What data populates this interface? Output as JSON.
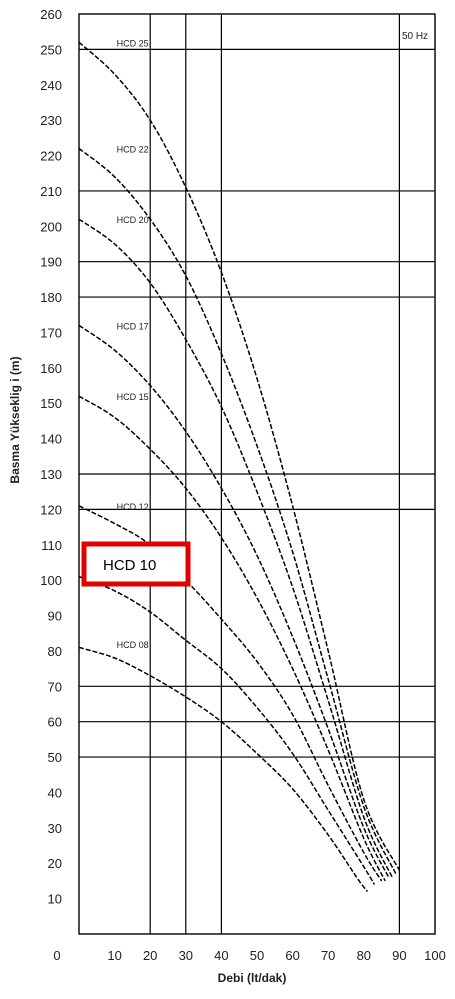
{
  "chart_data": {
    "type": "line",
    "xlabel": "Debi (lt/dak)",
    "ylabel": "Basma Yükseklig i (m)",
    "xlim": [
      0,
      100
    ],
    "ylim": [
      0,
      260
    ],
    "x_ticks": [
      "0",
      "10",
      "20",
      "30",
      "40",
      "50",
      "60",
      "70",
      "80",
      "90",
      "100"
    ],
    "y_ticks": [
      "10",
      "20",
      "30",
      "40",
      "50",
      "60",
      "70",
      "80",
      "90",
      "100",
      "110",
      "120",
      "130",
      "140",
      "150",
      "160",
      "170",
      "180",
      "190",
      "200",
      "210",
      "220",
      "230",
      "240",
      "250",
      "260"
    ],
    "grid": true,
    "frequency_label": "50 Hz",
    "series": [
      {
        "name": "HCD 08",
        "label_at": [
          10,
          82
        ],
        "points": [
          [
            0,
            81
          ],
          [
            10,
            78
          ],
          [
            20,
            73
          ],
          [
            30,
            67
          ],
          [
            40,
            60
          ],
          [
            50,
            51
          ],
          [
            60,
            41
          ],
          [
            70,
            28
          ],
          [
            78,
            16
          ],
          [
            81,
            12
          ]
        ]
      },
      {
        "name": "HCD 10",
        "label_at": [
          10,
          102
        ],
        "points": [
          [
            0,
            101
          ],
          [
            10,
            97
          ],
          [
            20,
            91
          ],
          [
            30,
            83
          ],
          [
            40,
            75
          ],
          [
            50,
            64
          ],
          [
            60,
            51
          ],
          [
            70,
            35
          ],
          [
            80,
            19
          ],
          [
            83,
            14
          ]
        ]
      },
      {
        "name": "HCD 12",
        "label_at": [
          10,
          121
        ],
        "points": [
          [
            0,
            121
          ],
          [
            10,
            116
          ],
          [
            20,
            110
          ],
          [
            30,
            100
          ],
          [
            40,
            89
          ],
          [
            50,
            77
          ],
          [
            60,
            62
          ],
          [
            70,
            42
          ],
          [
            80,
            23
          ],
          [
            85,
            15
          ]
        ]
      },
      {
        "name": "HCD 15",
        "label_at": [
          10,
          152
        ],
        "points": [
          [
            0,
            152
          ],
          [
            10,
            146
          ],
          [
            20,
            137
          ],
          [
            30,
            126
          ],
          [
            40,
            112
          ],
          [
            50,
            95
          ],
          [
            60,
            75
          ],
          [
            70,
            52
          ],
          [
            80,
            27
          ],
          [
            86,
            15
          ]
        ]
      },
      {
        "name": "HCD 17",
        "label_at": [
          10,
          172
        ],
        "points": [
          [
            0,
            172
          ],
          [
            10,
            165
          ],
          [
            20,
            155
          ],
          [
            30,
            142
          ],
          [
            40,
            126
          ],
          [
            50,
            107
          ],
          [
            60,
            84
          ],
          [
            70,
            58
          ],
          [
            80,
            30
          ],
          [
            87,
            16
          ]
        ]
      },
      {
        "name": "HCD 20",
        "label_at": [
          10,
          202
        ],
        "points": [
          [
            0,
            202
          ],
          [
            10,
            195
          ],
          [
            20,
            184
          ],
          [
            30,
            168
          ],
          [
            40,
            149
          ],
          [
            50,
            125
          ],
          [
            60,
            98
          ],
          [
            70,
            66
          ],
          [
            80,
            33
          ],
          [
            88,
            16
          ]
        ]
      },
      {
        "name": "HCD 22",
        "label_at": [
          10,
          222
        ],
        "points": [
          [
            0,
            222
          ],
          [
            10,
            214
          ],
          [
            20,
            202
          ],
          [
            30,
            186
          ],
          [
            40,
            164
          ],
          [
            50,
            138
          ],
          [
            60,
            108
          ],
          [
            70,
            72
          ],
          [
            80,
            36
          ],
          [
            89,
            17
          ]
        ]
      },
      {
        "name": "HCD 25",
        "label_at": [
          10,
          252
        ],
        "points": [
          [
            0,
            252
          ],
          [
            10,
            243
          ],
          [
            20,
            230
          ],
          [
            30,
            211
          ],
          [
            40,
            187
          ],
          [
            50,
            157
          ],
          [
            60,
            121
          ],
          [
            70,
            80
          ],
          [
            80,
            38
          ],
          [
            90,
            18
          ]
        ]
      }
    ],
    "highlight": {
      "label": "HCD 10",
      "color": "#e00000"
    },
    "colors": {
      "grid": "#000000",
      "curve": "#000000",
      "background": "#ffffff"
    }
  }
}
